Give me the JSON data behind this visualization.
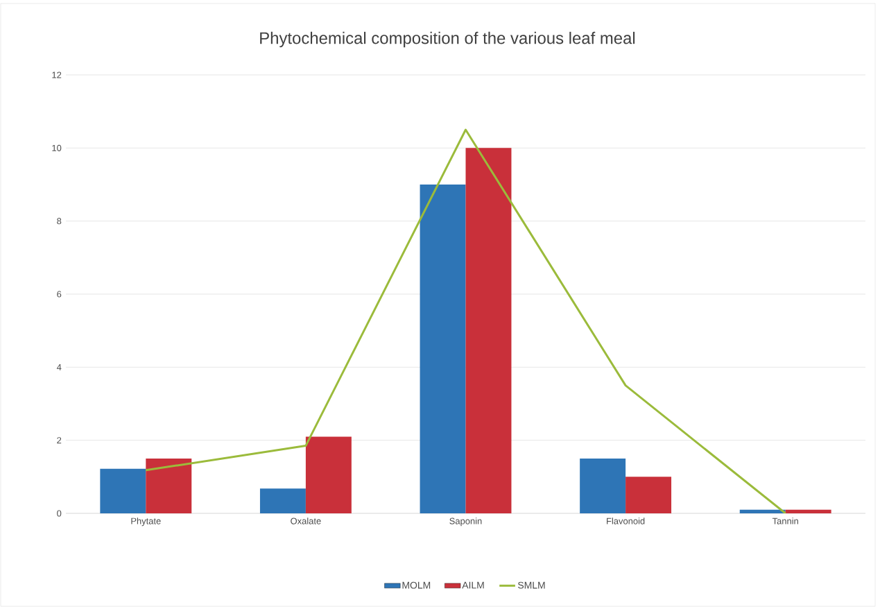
{
  "chart_data": {
    "type": "bar",
    "title": "Phytochemical composition of the various leaf meal",
    "categories": [
      "Phytate",
      "Oxalate",
      "Saponin",
      "Flavonoid",
      "Tannin"
    ],
    "series": [
      {
        "name": "MOLM",
        "color": "#2e75b6",
        "values": [
          1.22,
          0.68,
          9.0,
          1.5,
          0.1
        ]
      },
      {
        "name": "AILM",
        "color": "#c9303a",
        "values": [
          1.5,
          2.1,
          10.0,
          1.0,
          0.1
        ]
      },
      {
        "name": "SMLM",
        "type": "line",
        "color": "#9bbb3b",
        "values": [
          1.18,
          1.85,
          10.5,
          3.5,
          0.0
        ]
      }
    ],
    "ylim": [
      0,
      12
    ],
    "yticks": [
      0,
      2,
      4,
      6,
      8,
      10,
      12
    ],
    "grid": "y",
    "legend": "bottom"
  }
}
